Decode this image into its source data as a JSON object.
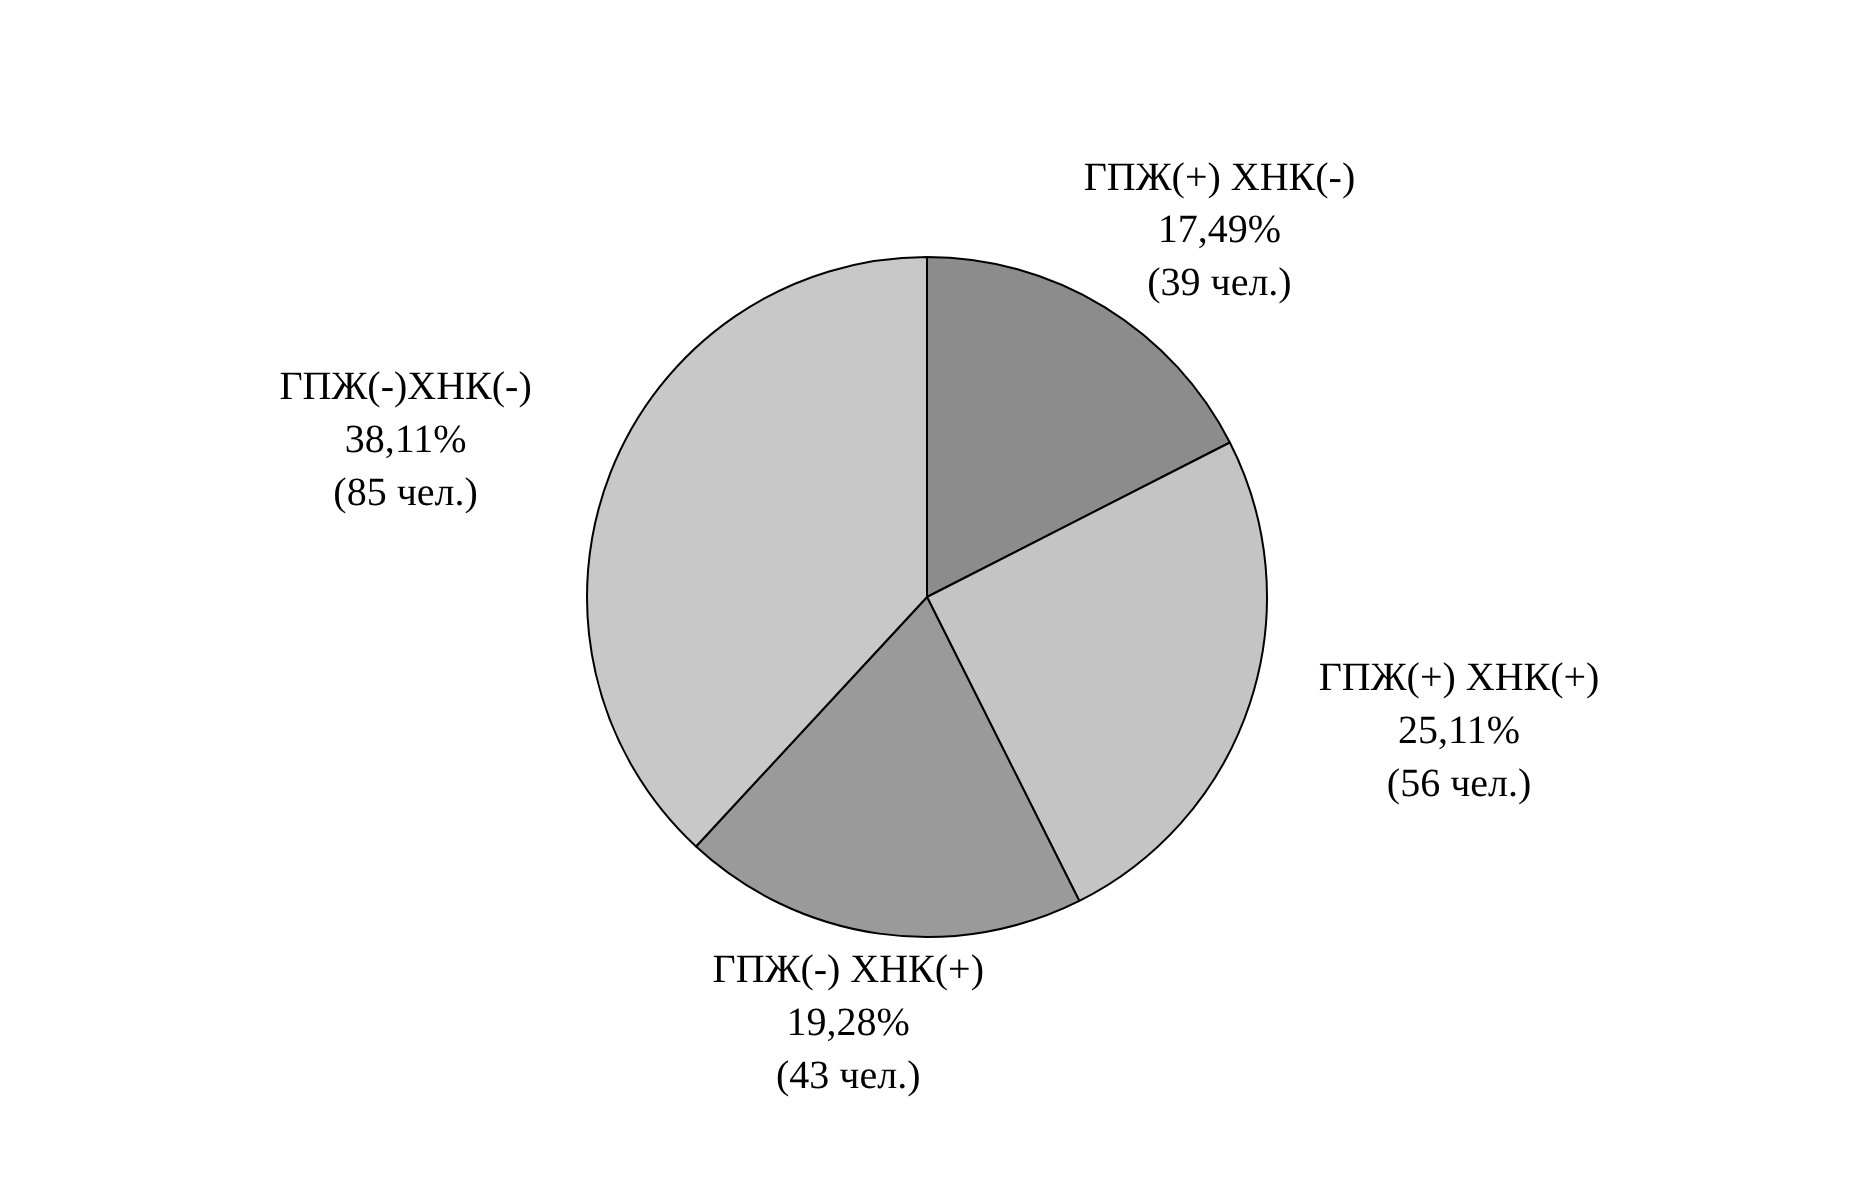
{
  "chart_data": {
    "type": "pie",
    "categories": [
      "ГПЖ(+) ХНК(-)",
      "ГПЖ(+) ХНК(+)",
      "ГПЖ(-) ХНК(+)",
      "ГПЖ(-)ХНК(-)"
    ],
    "values": [
      17.49,
      25.11,
      19.28,
      38.11
    ],
    "value_labels": [
      "17,49%\n(39 чел.)",
      "25,11%\n(56 чел.)",
      "19,28%\n(43 чел.)",
      "38,11%\n(85 чел.)"
    ],
    "colors": [
      "#8c8c8c",
      "#c4c4c4",
      "#9a9a9a",
      "#c8c8c8"
    ]
  }
}
